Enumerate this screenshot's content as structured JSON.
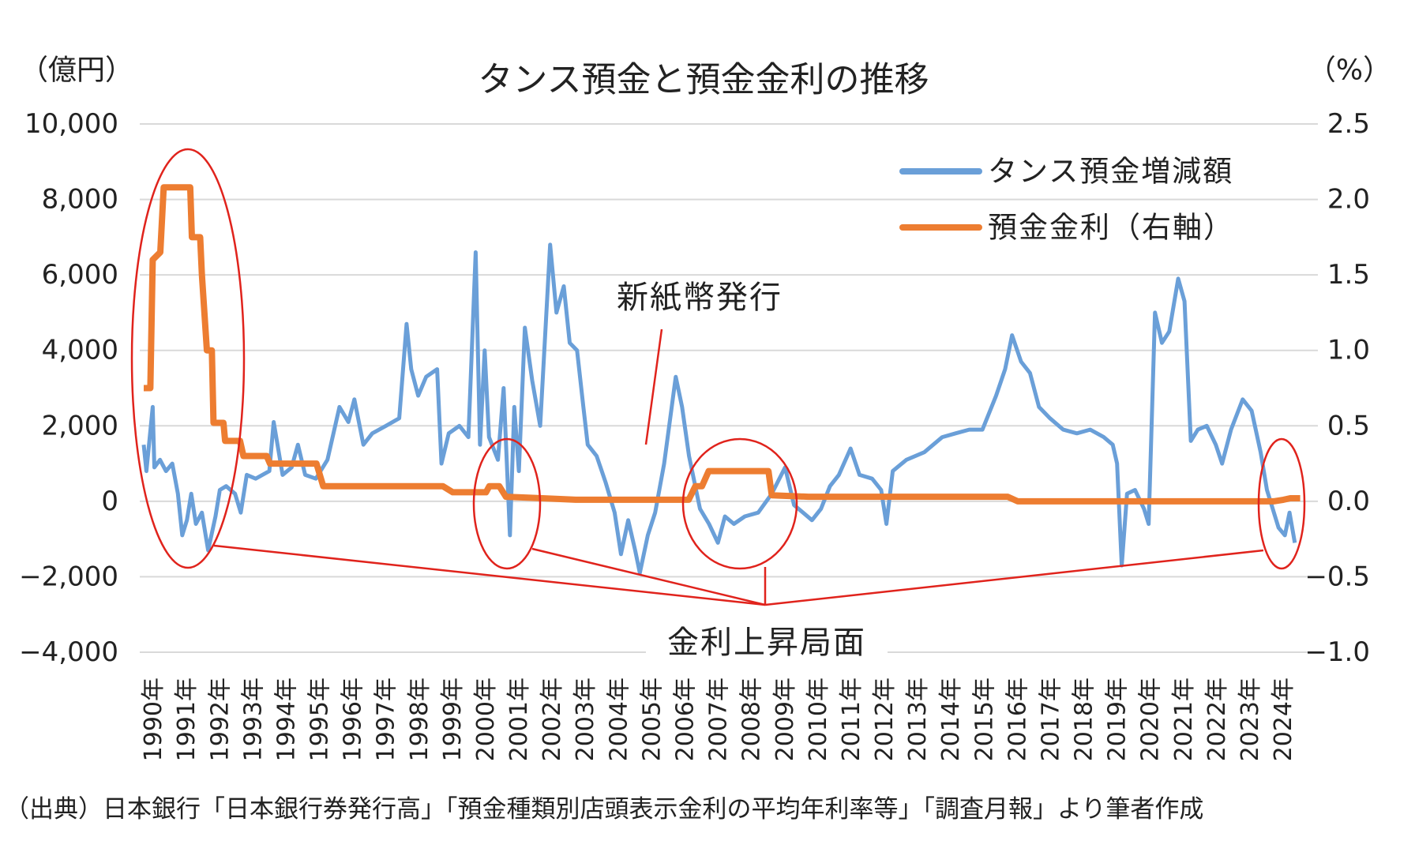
{
  "chart_data": {
    "type": "line",
    "title": "タンス預金と預金金利の推移",
    "y_unit_label": "（億円）",
    "y2_unit_label": "（%）",
    "annotations": [
      "新紙幣発行",
      "金利上昇局面"
    ],
    "source": "（出典）日本銀行「日本銀行券発行高」「預金種類別店頭表示金利の平均年利率等」「調査月報」より筆者作成",
    "xlim": [
      1990,
      2025
    ],
    "xticks": [
      {
        "value": 1990,
        "label": "1990年"
      },
      {
        "value": 1991,
        "label": "1991年"
      },
      {
        "value": 1992,
        "label": "1992年"
      },
      {
        "value": 1993,
        "label": "1993年"
      },
      {
        "value": 1994,
        "label": "1994年"
      },
      {
        "value": 1995,
        "label": "1995年"
      },
      {
        "value": 1996,
        "label": "1996年"
      },
      {
        "value": 1997,
        "label": "1997年"
      },
      {
        "value": 1998,
        "label": "1998年"
      },
      {
        "value": 1999,
        "label": "1999年"
      },
      {
        "value": 2000,
        "label": "2000年"
      },
      {
        "value": 2001,
        "label": "2001年"
      },
      {
        "value": 2002,
        "label": "2002年"
      },
      {
        "value": 2003,
        "label": "2003年"
      },
      {
        "value": 2004,
        "label": "2004年"
      },
      {
        "value": 2005,
        "label": "2005年"
      },
      {
        "value": 2006,
        "label": "2006年"
      },
      {
        "value": 2007,
        "label": "2007年"
      },
      {
        "value": 2008,
        "label": "2008年"
      },
      {
        "value": 2009,
        "label": "2009年"
      },
      {
        "value": 2010,
        "label": "2010年"
      },
      {
        "value": 2011,
        "label": "2011年"
      },
      {
        "value": 2012,
        "label": "2012年"
      },
      {
        "value": 2013,
        "label": "2013年"
      },
      {
        "value": 2014,
        "label": "2014年"
      },
      {
        "value": 2015,
        "label": "2015年"
      },
      {
        "value": 2016,
        "label": "2016年"
      },
      {
        "value": 2017,
        "label": "2017年"
      },
      {
        "value": 2018,
        "label": "2018年"
      },
      {
        "value": 2019,
        "label": "2019年"
      },
      {
        "value": 2020,
        "label": "2020年"
      },
      {
        "value": 2021,
        "label": "2021年"
      },
      {
        "value": 2022,
        "label": "2022年"
      },
      {
        "value": 2023,
        "label": "2023年"
      },
      {
        "value": 2024,
        "label": "2024年"
      }
    ],
    "ylim": [
      -4000,
      10000
    ],
    "yticks": [
      {
        "value": 10000,
        "label": "10,000"
      },
      {
        "value": 8000,
        "label": "8,000"
      },
      {
        "value": 6000,
        "label": "6,000"
      },
      {
        "value": 4000,
        "label": "4,000"
      },
      {
        "value": 2000,
        "label": "2,000"
      },
      0,
      {
        "value": -2000,
        "label": "−2,000"
      },
      {
        "value": -4000,
        "label": "−4,000"
      }
    ],
    "y2lim": [
      -1.0,
      2.5
    ],
    "y2ticks": [
      2.5,
      {
        "value": 2,
        "label": "2.0"
      },
      1.5,
      {
        "value": 1,
        "label": "1.0"
      },
      0.5,
      {
        "value": 0,
        "label": "0.0"
      },
      {
        "value": -0.5,
        "label": "−0.5"
      },
      {
        "value": -1,
        "label": "−1.0"
      }
    ],
    "grid": true,
    "legend_position": "upper right",
    "series": [
      {
        "name": "タンス預金増減額",
        "color": "#6a9fd8",
        "axis": "y",
        "x": [
          1990.0,
          1990.08,
          1990.27,
          1990.32,
          1990.49,
          1990.67,
          1990.86,
          1991.03,
          1991.16,
          1991.3,
          1991.43,
          1991.57,
          1991.75,
          1991.94,
          1992.16,
          1992.29,
          1992.48,
          1992.75,
          1992.92,
          1993.1,
          1993.37,
          1993.78,
          1993.91,
          1994.18,
          1994.45,
          1994.64,
          1994.86,
          1995.18,
          1995.53,
          1995.89,
          1996.16,
          1996.34,
          1996.61,
          1996.88,
          1997.29,
          1997.69,
          1997.91,
          1998.05,
          1998.26,
          1998.5,
          1998.83,
          1998.96,
          1999.18,
          1999.5,
          1999.77,
          1999.99,
          2000.12,
          2000.26,
          2000.39,
          2000.66,
          2000.83,
          2001.02,
          2001.15,
          2001.29,
          2001.47,
          2001.69,
          2001.93,
          2002.23,
          2002.42,
          2002.64,
          2002.82,
          2003.04,
          2003.23,
          2003.36,
          2003.63,
          2003.9,
          2004.17,
          2004.36,
          2004.58,
          2004.79,
          2004.93,
          2005.17,
          2005.39,
          2005.66,
          2006.01,
          2006.2,
          2006.41,
          2006.74,
          2007.01,
          2007.28,
          2007.49,
          2007.76,
          2008.09,
          2008.49,
          2008.9,
          2009.3,
          2009.57,
          2009.84,
          2010.11,
          2010.38,
          2010.65,
          2010.92,
          2011.27,
          2011.54,
          2011.92,
          2012.19,
          2012.35,
          2012.54,
          2012.95,
          2013.49,
          2014.03,
          2014.43,
          2014.84,
          2015.24,
          2015.65,
          2015.92,
          2016.13,
          2016.4,
          2016.67,
          2016.94,
          2017.27,
          2017.67,
          2018.08,
          2018.48,
          2018.89,
          2019.16,
          2019.29,
          2019.43,
          2019.59,
          2019.83,
          2020.1,
          2020.24,
          2020.43,
          2020.64,
          2020.86,
          2021.13,
          2021.32,
          2021.51,
          2021.72,
          2021.99,
          2022.26,
          2022.45,
          2022.72,
          2023.07,
          2023.34,
          2023.61,
          2023.8,
          2024.15,
          2024.34,
          2024.48,
          2024.64
        ],
        "values": [
          1500,
          800,
          2500,
          900,
          1100,
          800,
          1000,
          200,
          -900,
          -500,
          200,
          -600,
          -300,
          -1300,
          -400,
          300,
          400,
          200,
          -300,
          700,
          600,
          800,
          2100,
          700,
          900,
          1500,
          700,
          600,
          1100,
          2500,
          2100,
          2700,
          1500,
          1800,
          2000,
          2200,
          4700,
          3500,
          2800,
          3300,
          3500,
          1000,
          1800,
          2000,
          1700,
          6600,
          1500,
          4000,
          1700,
          1100,
          3000,
          -900,
          2500,
          800,
          4600,
          3200,
          2000,
          6800,
          5000,
          5700,
          4200,
          4000,
          2500,
          1500,
          1200,
          500,
          -300,
          -1400,
          -500,
          -1300,
          -1900,
          -900,
          -300,
          1000,
          3300,
          2500,
          1200,
          -200,
          -600,
          -1100,
          -400,
          -600,
          -400,
          -300,
          200,
          900,
          -100,
          -300,
          -500,
          -200,
          400,
          700,
          1400,
          700,
          600,
          300,
          -600,
          800,
          1100,
          1300,
          1700,
          1800,
          1900,
          1900,
          2800,
          3500,
          4400,
          3700,
          3400,
          2500,
          2200,
          1900,
          1800,
          1900,
          1700,
          1500,
          1000,
          -1700,
          200,
          300,
          -200,
          -600,
          5000,
          4200,
          4500,
          5900,
          5300,
          1600,
          1900,
          2000,
          1500,
          1000,
          1900,
          2700,
          2400,
          1300,
          300,
          -700,
          -900,
          -300,
          -1100
        ]
      },
      {
        "name": "預金金利（右軸）",
        "color": "#ed7d31",
        "axis": "y2",
        "x": [
          1990.0,
          1990.2,
          1990.27,
          1990.5,
          1990.6,
          1991.4,
          1991.45,
          1991.7,
          1991.75,
          1991.9,
          1992.05,
          1992.1,
          1992.4,
          1992.45,
          1992.9,
          1993.0,
          1993.7,
          1993.8,
          1995.2,
          1995.4,
          1999.0,
          1999.3,
          2000.3,
          2000.4,
          2000.7,
          2000.9,
          2002.0,
          2003.0,
          2006.4,
          2006.6,
          2006.8,
          2007.0,
          2008.8,
          2008.9,
          2010.0,
          2016.0,
          2016.3,
          2024.0,
          2024.3,
          2024.5,
          2024.8
        ],
        "values": [
          0.75,
          0.75,
          1.6,
          1.65,
          2.08,
          2.08,
          1.75,
          1.75,
          1.5,
          1.0,
          1.0,
          0.52,
          0.52,
          0.4,
          0.4,
          0.3,
          0.3,
          0.25,
          0.25,
          0.1,
          0.1,
          0.06,
          0.06,
          0.1,
          0.1,
          0.03,
          0.02,
          0.01,
          0.01,
          0.1,
          0.1,
          0.2,
          0.2,
          0.04,
          0.03,
          0.03,
          0,
          0,
          0.01,
          0.02,
          0.02
        ]
      }
    ]
  }
}
